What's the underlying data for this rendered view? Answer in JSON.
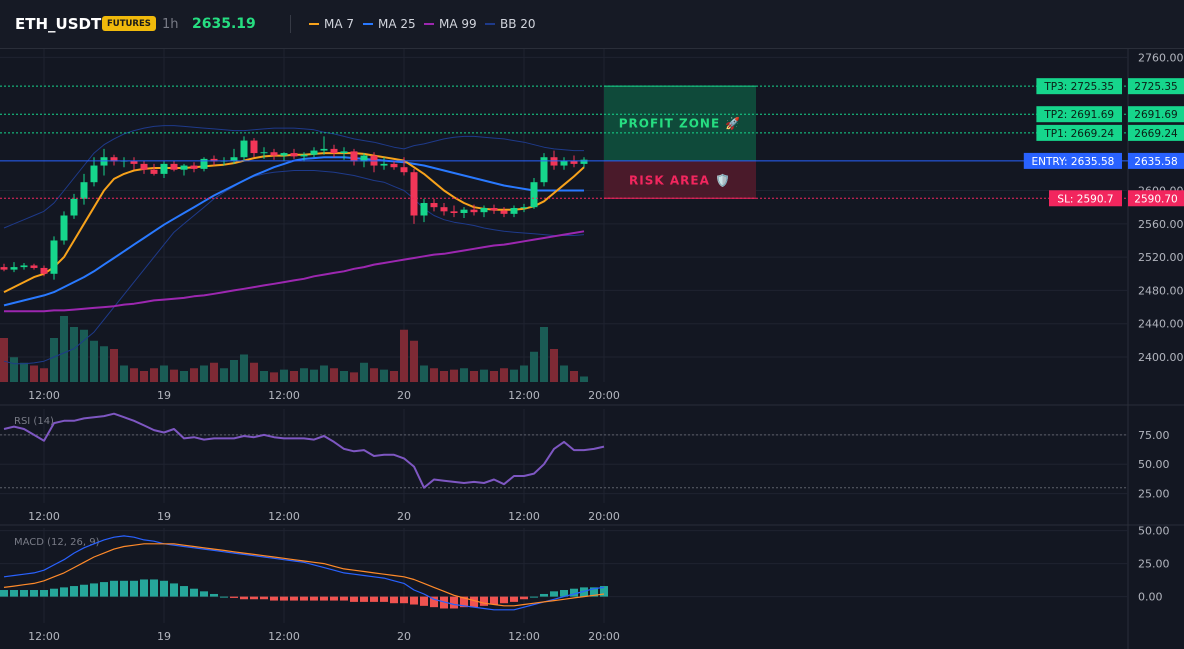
{
  "header": {
    "symbol": "ETH_USDT",
    "badge": "FUTURES",
    "timeframe": "1h",
    "price": "2635.19",
    "legend": [
      {
        "label": "MA 7",
        "color": "#f7a21b"
      },
      {
        "label": "MA 25",
        "color": "#2979ff"
      },
      {
        "label": "MA 99",
        "color": "#9c27b0"
      },
      {
        "label": "BB 20",
        "color": "#1e3a8a"
      }
    ]
  },
  "colors": {
    "up": "#26a69a",
    "up_bright": "#16d68c",
    "down": "#f23658",
    "vol_up": "#1a5c55",
    "vol_down": "#7e2a35",
    "tp": "#16d68c",
    "entry": "#2962ff",
    "sl": "#f2265e",
    "rsi": "#7e57c2",
    "macd": "#2962ff",
    "signal": "#ff8a2a"
  },
  "chart_data": [
    {
      "type": "candlestick",
      "ylim": [
        2370,
        2770
      ],
      "y_ticks": [
        "2760.00",
        "2600.00",
        "2560.00",
        "2520.00",
        "2480.00",
        "2440.00",
        "2400.00"
      ],
      "y_tick_values": [
        2760,
        2600,
        2560,
        2520,
        2480,
        2440,
        2400
      ],
      "x_ticks": [
        "12:00",
        "19",
        "12:00",
        "20",
        "12:00",
        "20:00"
      ],
      "x_tick_index": [
        4,
        16,
        28,
        40,
        52,
        60
      ],
      "ohlc": [
        [
          2508,
          2512,
          2503,
          2505
        ],
        [
          2505,
          2514,
          2502,
          2508
        ],
        [
          2508,
          2513,
          2505,
          2510
        ],
        [
          2510,
          2512,
          2505,
          2507
        ],
        [
          2507,
          2510,
          2497,
          2500
        ],
        [
          2500,
          2545,
          2493,
          2540
        ],
        [
          2540,
          2575,
          2535,
          2570
        ],
        [
          2570,
          2596,
          2566,
          2590
        ],
        [
          2590,
          2620,
          2583,
          2610
        ],
        [
          2610,
          2640,
          2605,
          2630
        ],
        [
          2630,
          2650,
          2618,
          2640
        ],
        [
          2640,
          2643,
          2630,
          2635
        ],
        [
          2635,
          2640,
          2628,
          2636
        ],
        [
          2636,
          2640,
          2625,
          2632
        ],
        [
          2632,
          2636,
          2620,
          2625
        ],
        [
          2625,
          2632,
          2618,
          2620
        ],
        [
          2620,
          2635,
          2615,
          2632
        ],
        [
          2632,
          2636,
          2623,
          2625
        ],
        [
          2625,
          2632,
          2618,
          2630
        ],
        [
          2630,
          2634,
          2622,
          2626
        ],
        [
          2626,
          2640,
          2623,
          2638
        ],
        [
          2638,
          2642,
          2630,
          2635
        ],
        [
          2635,
          2640,
          2630,
          2636
        ],
        [
          2636,
          2650,
          2632,
          2640
        ],
        [
          2640,
          2665,
          2636,
          2660
        ],
        [
          2660,
          2663,
          2640,
          2645
        ],
        [
          2645,
          2652,
          2638,
          2646
        ],
        [
          2646,
          2650,
          2637,
          2642
        ],
        [
          2642,
          2646,
          2636,
          2645
        ],
        [
          2645,
          2650,
          2638,
          2641
        ],
        [
          2641,
          2646,
          2635,
          2643
        ],
        [
          2643,
          2652,
          2640,
          2648
        ],
        [
          2648,
          2665,
          2643,
          2650
        ],
        [
          2650,
          2655,
          2640,
          2645
        ],
        [
          2645,
          2652,
          2637,
          2647
        ],
        [
          2647,
          2650,
          2630,
          2635
        ],
        [
          2635,
          2645,
          2628,
          2642
        ],
        [
          2642,
          2646,
          2622,
          2630
        ],
        [
          2630,
          2640,
          2625,
          2632
        ],
        [
          2632,
          2636,
          2625,
          2628
        ],
        [
          2628,
          2640,
          2618,
          2622
        ],
        [
          2622,
          2626,
          2560,
          2570
        ],
        [
          2570,
          2590,
          2562,
          2585
        ],
        [
          2585,
          2590,
          2575,
          2580
        ],
        [
          2580,
          2585,
          2570,
          2575
        ],
        [
          2575,
          2582,
          2568,
          2573
        ],
        [
          2573,
          2580,
          2567,
          2577
        ],
        [
          2577,
          2583,
          2570,
          2574
        ],
        [
          2574,
          2582,
          2568,
          2579
        ],
        [
          2579,
          2583,
          2572,
          2576
        ],
        [
          2576,
          2580,
          2568,
          2572
        ],
        [
          2572,
          2582,
          2568,
          2579
        ],
        [
          2579,
          2584,
          2574,
          2580
        ],
        [
          2580,
          2615,
          2578,
          2610
        ],
        [
          2610,
          2645,
          2605,
          2640
        ],
        [
          2640,
          2648,
          2625,
          2630
        ],
        [
          2630,
          2640,
          2625,
          2636
        ],
        [
          2636,
          2642,
          2628,
          2632
        ],
        [
          2632,
          2640,
          2628,
          2637
        ]
      ],
      "volume": [
        32,
        18,
        14,
        12,
        10,
        32,
        48,
        40,
        38,
        30,
        26,
        24,
        12,
        10,
        8,
        10,
        12,
        9,
        8,
        10,
        12,
        14,
        10,
        16,
        20,
        14,
        8,
        7,
        9,
        8,
        10,
        9,
        12,
        10,
        8,
        7,
        14,
        10,
        9,
        8,
        38,
        30,
        12,
        10,
        8,
        9,
        10,
        8,
        9,
        8,
        10,
        9,
        12,
        22,
        40,
        24,
        12,
        8,
        4
      ],
      "ma7": [
        2478,
        2484,
        2490,
        2496,
        2500,
        2508,
        2520,
        2540,
        2560,
        2580,
        2600,
        2614,
        2620,
        2624,
        2626,
        2627,
        2627,
        2627,
        2627,
        2628,
        2629,
        2630,
        2631,
        2633,
        2636,
        2639,
        2641,
        2642,
        2642,
        2643,
        2643,
        2644,
        2645,
        2645,
        2645,
        2645,
        2644,
        2642,
        2640,
        2638,
        2636,
        2628,
        2620,
        2610,
        2600,
        2592,
        2585,
        2580,
        2578,
        2577,
        2577,
        2577,
        2578,
        2581,
        2587,
        2597,
        2607,
        2617,
        2628
      ],
      "ma25": [
        2462,
        2465,
        2468,
        2471,
        2474,
        2478,
        2484,
        2490,
        2496,
        2503,
        2511,
        2519,
        2527,
        2535,
        2543,
        2551,
        2559,
        2566,
        2573,
        2580,
        2587,
        2594,
        2600,
        2606,
        2612,
        2618,
        2623,
        2628,
        2632,
        2636,
        2638,
        2639,
        2640,
        2640,
        2640,
        2639,
        2638,
        2637,
        2636,
        2635,
        2634,
        2632,
        2630,
        2627,
        2624,
        2621,
        2618,
        2615,
        2612,
        2609,
        2606,
        2604,
        2602,
        2600,
        2600,
        2600,
        2600,
        2600,
        2600
      ],
      "ma99": [
        2455,
        2455,
        2455,
        2455,
        2455,
        2456,
        2456,
        2457,
        2458,
        2459,
        2460,
        2461,
        2463,
        2464,
        2466,
        2468,
        2469,
        2470,
        2471,
        2473,
        2474,
        2476,
        2478,
        2480,
        2482,
        2484,
        2486,
        2488,
        2490,
        2492,
        2494,
        2497,
        2499,
        2501,
        2503,
        2506,
        2508,
        2511,
        2513,
        2515,
        2517,
        2519,
        2521,
        2523,
        2524,
        2526,
        2528,
        2530,
        2532,
        2534,
        2535,
        2537,
        2539,
        2541,
        2543,
        2545,
        2547,
        2549,
        2551
      ],
      "bb_upper": [
        2555,
        2560,
        2565,
        2570,
        2575,
        2585,
        2600,
        2615,
        2630,
        2645,
        2655,
        2662,
        2668,
        2672,
        2675,
        2677,
        2678,
        2678,
        2677,
        2676,
        2675,
        2674,
        2673,
        2672,
        2672,
        2673,
        2674,
        2675,
        2675,
        2675,
        2674,
        2673,
        2670,
        2668,
        2665,
        2662,
        2660,
        2658,
        2655,
        2652,
        2650,
        2654,
        2656,
        2659,
        2662,
        2664,
        2665,
        2665,
        2664,
        2663,
        2662,
        2660,
        2658,
        2655,
        2652,
        2650,
        2649,
        2648,
        2648
      ],
      "bb_lower": [
        2395,
        2392,
        2392,
        2393,
        2395,
        2400,
        2405,
        2410,
        2420,
        2430,
        2445,
        2460,
        2475,
        2490,
        2505,
        2520,
        2535,
        2550,
        2560,
        2570,
        2580,
        2590,
        2598,
        2605,
        2612,
        2617,
        2620,
        2622,
        2623,
        2624,
        2624,
        2624,
        2623,
        2622,
        2620,
        2618,
        2615,
        2612,
        2610,
        2605,
        2600,
        2590,
        2578,
        2570,
        2565,
        2562,
        2560,
        2558,
        2555,
        2553,
        2551,
        2550,
        2549,
        2548,
        2547,
        2546,
        2546,
        2546,
        2547
      ]
    },
    {
      "type": "line",
      "title": "RSI (14)",
      "ylim": [
        17,
        97
      ],
      "y_ticks": [
        "75.00",
        "50.00",
        "25.00"
      ],
      "y_tick_values": [
        75,
        50,
        25
      ],
      "x_ticks": [
        "12:00",
        "19",
        "12:00",
        "20",
        "12:00",
        "20:00"
      ],
      "x_tick_index": [
        4,
        16,
        28,
        40,
        52,
        60
      ],
      "values": [
        80,
        82,
        80,
        75,
        70,
        85,
        87,
        87,
        89,
        90,
        91,
        93,
        90,
        87,
        83,
        79,
        77,
        80,
        72,
        73,
        71,
        72,
        72,
        72,
        74,
        73,
        75,
        73,
        72,
        72,
        72,
        71,
        74,
        69,
        63,
        61,
        62,
        57,
        58,
        58,
        55,
        48,
        30,
        37,
        36,
        35,
        34,
        35,
        34,
        37,
        33,
        40,
        40,
        42,
        50,
        63,
        69,
        62,
        62,
        63,
        65
      ]
    },
    {
      "type": "bar-line",
      "title": "MACD (12, 26, 9)",
      "ylim": [
        -20,
        52
      ],
      "y_ticks": [
        "50.00",
        "25.00",
        "0.00"
      ],
      "y_tick_values": [
        50,
        25,
        0
      ],
      "x_ticks": [
        "12:00",
        "19",
        "12:00",
        "20",
        "12:00",
        "20:00"
      ],
      "x_tick_index": [
        4,
        16,
        28,
        40,
        52,
        60
      ],
      "histogram": [
        5,
        5,
        5,
        5,
        5,
        6,
        7,
        8,
        9,
        10,
        11,
        12,
        12,
        12,
        13,
        13,
        12,
        10,
        8,
        6,
        4,
        2,
        0,
        -1,
        -2,
        -2,
        -2,
        -3,
        -3,
        -3,
        -3,
        -3,
        -3,
        -3,
        -3,
        -4,
        -4,
        -4,
        -4,
        -5,
        -5,
        -6,
        -7,
        -8,
        -9,
        -9,
        -8,
        -8,
        -7,
        -6,
        -5,
        -4,
        -2,
        0,
        2,
        4,
        5,
        6,
        7,
        7,
        8
      ],
      "macd": [
        15,
        16,
        17,
        18,
        20,
        24,
        28,
        33,
        37,
        40,
        43,
        45,
        46,
        45,
        43,
        42,
        40,
        39,
        38,
        37,
        36,
        35,
        34,
        33,
        32,
        31,
        30,
        29,
        28,
        27,
        26,
        24,
        22,
        20,
        18,
        17,
        16,
        15,
        14,
        12,
        10,
        5,
        2,
        -2,
        -4,
        -6,
        -7,
        -8,
        -9,
        -10,
        -10,
        -10,
        -8,
        -6,
        -4,
        -2,
        0,
        2,
        4,
        6,
        7
      ],
      "signal": [
        7,
        8,
        9,
        10,
        12,
        15,
        18,
        22,
        26,
        30,
        33,
        36,
        38,
        39,
        40,
        40,
        40,
        40,
        39,
        38,
        37,
        36,
        35,
        34,
        33,
        32,
        31,
        30,
        29,
        28,
        27,
        26,
        25,
        23,
        21,
        20,
        19,
        18,
        17,
        16,
        15,
        13,
        10,
        7,
        4,
        1,
        -1,
        -3,
        -5,
        -6,
        -7,
        -7,
        -6,
        -5,
        -4,
        -3,
        -2,
        -1,
        0,
        1,
        2
      ]
    }
  ],
  "levels": {
    "tp3": {
      "tag": "TP3: 2725.35",
      "value": 2725.35,
      "label": "2725.35"
    },
    "tp2": {
      "tag": "TP2: 2691.69",
      "value": 2691.69,
      "label": "2691.69"
    },
    "tp1": {
      "tag": "TP1: 2669.24",
      "value": 2669.24,
      "label": "2669.24"
    },
    "entry": {
      "tag": "ENTRY: 2635.58",
      "value": 2635.58,
      "label": "2635.58"
    },
    "sl": {
      "tag": "SL: 2590.7",
      "value": 2590.7,
      "label": "2590.70"
    }
  },
  "zones": {
    "profit": {
      "label": "PROFIT ZONE 🚀"
    },
    "risk": {
      "label": "RISK AREA 🛡️"
    }
  }
}
